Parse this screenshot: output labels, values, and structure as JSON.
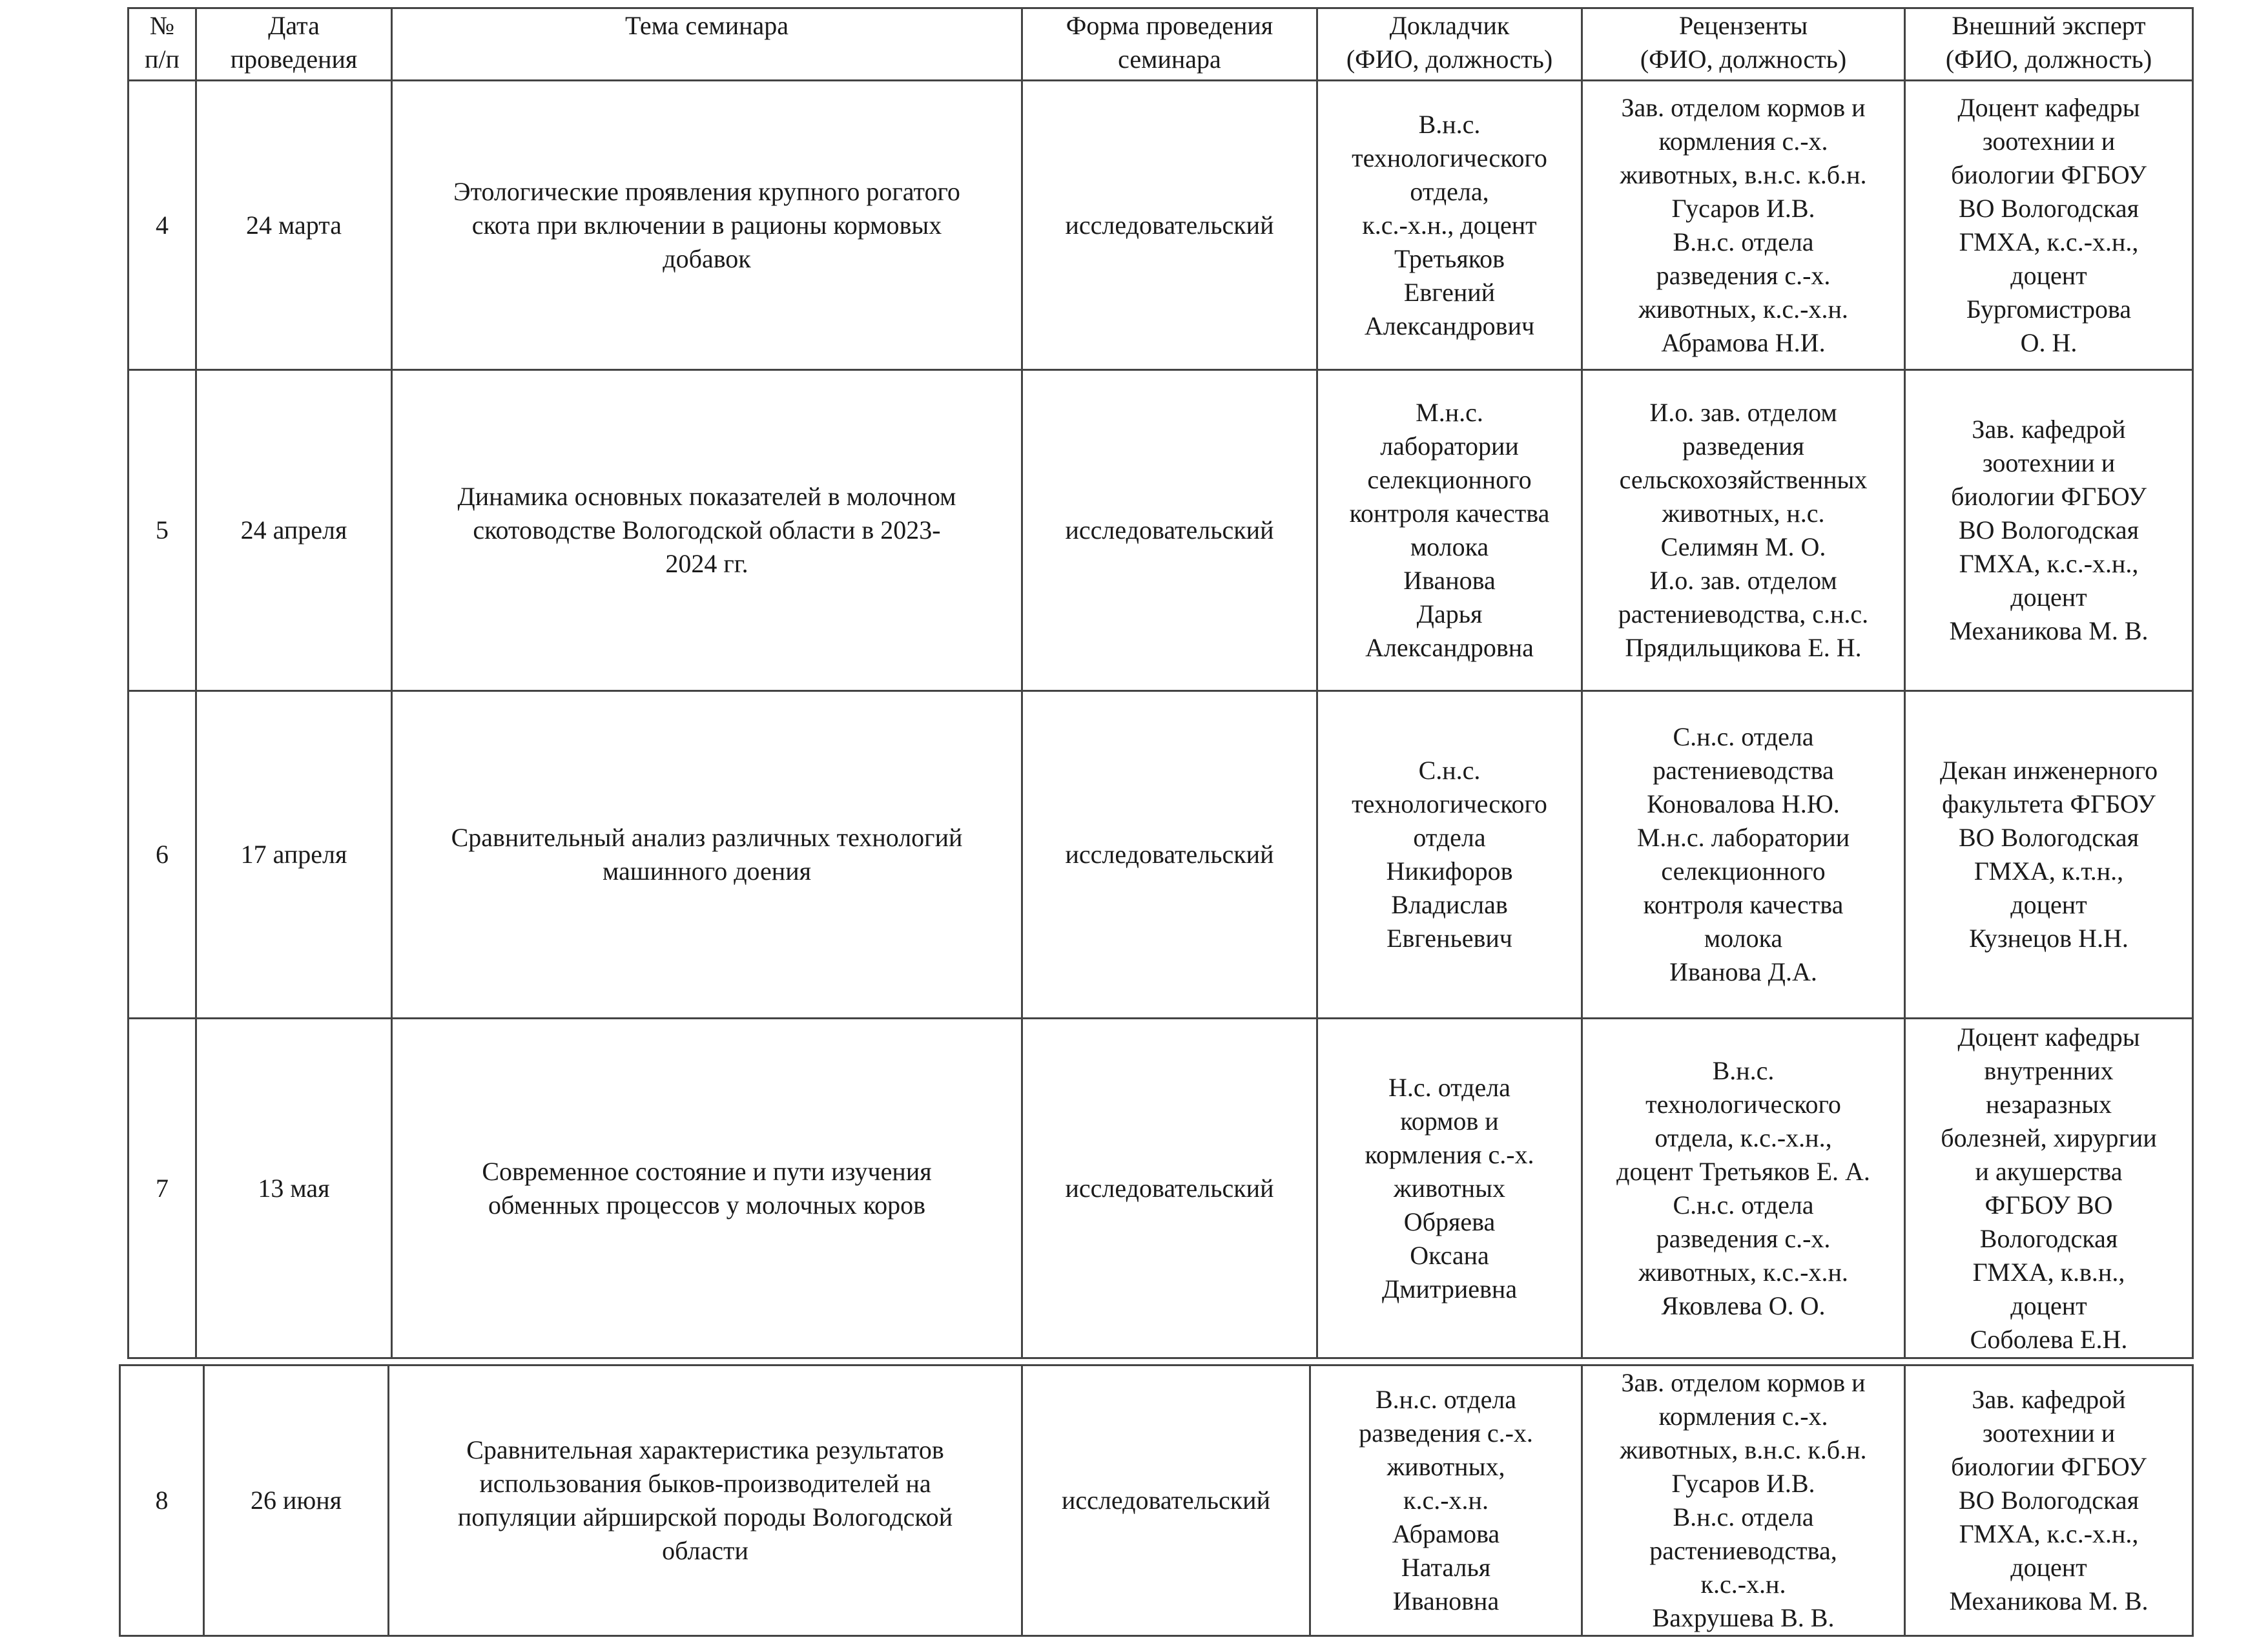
{
  "header": [
    "№\nп/п",
    "Дата\nпроведения",
    "Тема семинара",
    "Форма проведения\nсеминара",
    "Докладчик\n(ФИО, должность)",
    "Рецензенты\n(ФИО, должность)",
    "Внешний эксперт\n(ФИО, должность)"
  ],
  "rows": [
    {
      "num": "4",
      "date": "24 марта",
      "topic": "Этологические проявления крупного рогатого\nскота при включении в рационы кормовых\nдобавок",
      "form": "исследовательский",
      "speaker": "В.н.с.\nтехнологического\nотдела,\nк.с.-х.н., доцент\nТретьяков\nЕвгений\nАлександрович",
      "reviewers": "Зав. отделом кормов и\nкормления с.-х.\nживотных, в.н.с. к.б.н.\nГусаров И.В.\nВ.н.с. отдела\nразведения с.-х.\nживотных, к.с.-х.н.\nАбрамова Н.И.",
      "expert": "Доцент кафедры\nзоотехнии и\nбиологии ФГБОУ\nВО Вологодская\nГМХА, к.с.-х.н.,\nдоцент\nБургомистрова\nО. Н."
    },
    {
      "num": "5",
      "date": "24 апреля",
      "topic": "Динамика основных показателей в молочном\nскотоводстве Вологодской области в 2023-\n2024 гг.",
      "form": "исследовательский",
      "speaker": "М.н.с.\nлаборатории\nселекционного\nконтроля качества\nмолока\nИванова\nДарья\nАлександровна",
      "reviewers": "И.о. зав. отделом\nразведения\nсельскохозяйственных\nживотных, н.с.\nСелимян М. О.\nИ.о. зав. отделом\nрастениеводства, с.н.с.\nПрядильщикова Е. Н.",
      "expert": "Зав. кафедрой\nзоотехнии и\nбиологии ФГБОУ\nВО Вологодская\nГМХА, к.с.-х.н.,\nдоцент\nМеханикова М. В."
    },
    {
      "num": "6",
      "date": "17 апреля",
      "topic": "Сравнительный анализ различных технологий\nмашинного доения",
      "form": "исследовательский",
      "speaker": "С.н.с.\nтехнологического\nотдела\nНикифоров\nВладислав\nЕвгеньевич",
      "reviewers": "С.н.с. отдела\nрастениеводства\nКоновалова Н.Ю.\nМ.н.с. лаборатории\nселекционного\nконтроля качества\nмолока\nИванова Д.А.",
      "expert": "Декан инженерного\nфакультета ФГБОУ\nВО Вологодская\nГМХА, к.т.н.,\nдоцент\nКузнецов Н.Н."
    },
    {
      "num": "7",
      "date": "13 мая",
      "topic": "Современное состояние и пути изучения\nобменных процессов у молочных коров",
      "form": "исследовательский",
      "speaker": "Н.с. отдела\nкормов и\nкормления с.-х.\nживотных\nОбряева\nОксана\nДмитриевна",
      "reviewers": "В.н.с.\nтехнологического\nотдела, к.с.-х.н.,\nдоцент Третьяков Е. А.\nС.н.с. отдела\nразведения с.-х.\nживотных, к.с.-х.н.\nЯковлева О. О.",
      "expert": "Доцент кафедры\nвнутренних\nнезаразных\nболезней, хирургии\nи акушерства\nФГБОУ ВО\nВологодская\nГМХА, к.в.н.,\nдоцент\nСоболева Е.Н."
    },
    {
      "num": "8",
      "date": "26 июня",
      "topic": "Сравнительная характеристика результатов\nиспользования быков-производителей на\nпопуляции айрширской породы Вологодской\nобласти",
      "form": "исследовательский",
      "speaker": "В.н.с. отдела\nразведения с.-х.\nживотных,\nк.с.-х.н.\nАбрамова\nНаталья\nИвановна",
      "reviewers": "Зав. отделом кормов и\nкормления с.-х.\nживотных, в.н.с. к.б.н.\nГусаров И.В.\nВ.н.с. отдела\nрастениеводства,\nк.с.-х.н.\nВахрушева В. В.",
      "expert": "Зав. кафедрой\nзоотехнии и\nбиологии ФГБОУ\nВО Вологодская\nГМХА, к.с.-х.н.,\nдоцент\nМеханикова М. В."
    }
  ]
}
